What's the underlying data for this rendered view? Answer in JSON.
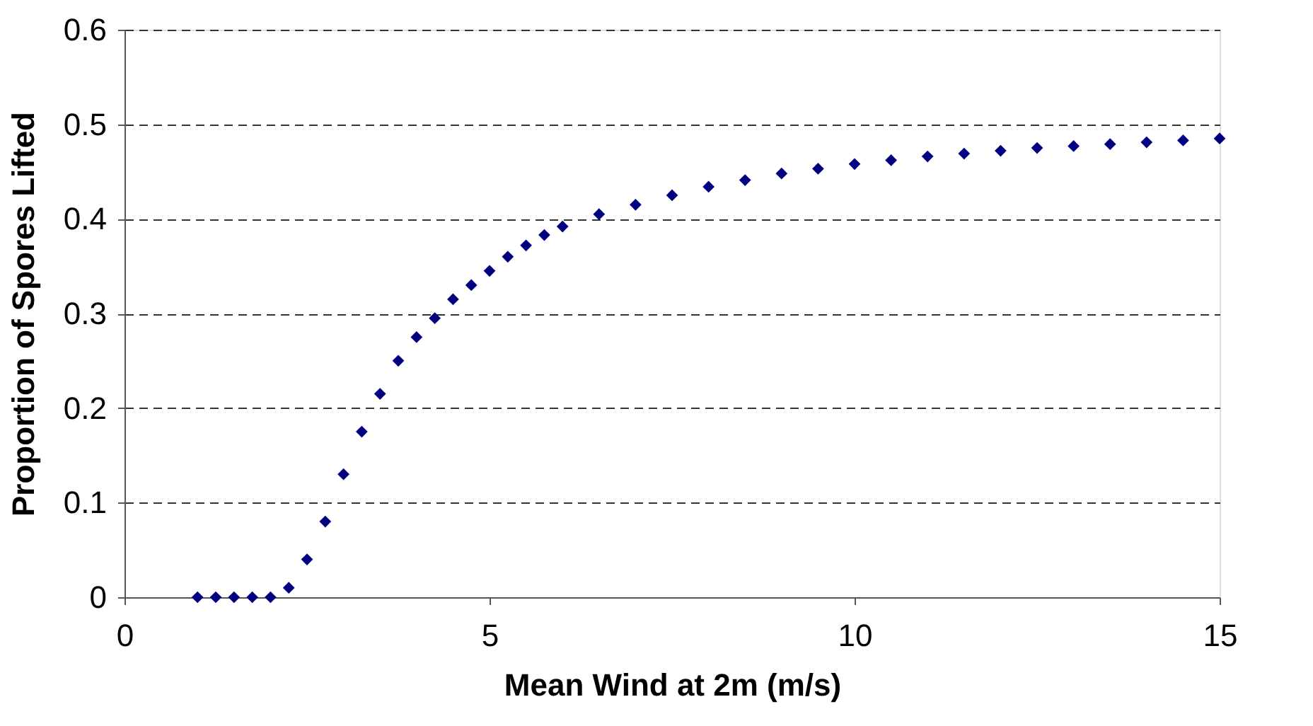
{
  "chart_data": {
    "type": "scatter",
    "xlabel": "Mean Wind at 2m (m/s)",
    "ylabel": "Proportion of Spores Lifted",
    "x": [
      1,
      1.25,
      1.5,
      1.75,
      2,
      2.25,
      2.5,
      2.75,
      3,
      3.25,
      3.5,
      3.75,
      4,
      4.25,
      4.5,
      4.75,
      5,
      5.25,
      5.5,
      5.75,
      6,
      6.5,
      7,
      7.5,
      8,
      8.5,
      9,
      9.5,
      10,
      10.5,
      11,
      11.5,
      12,
      12.5,
      13,
      13.5,
      14,
      14.5,
      15
    ],
    "series": [
      {
        "color": "#000080",
        "values": [
          0,
          0,
          0,
          0,
          0,
          0.01,
          0.04,
          0.08,
          0.13,
          0.175,
          0.215,
          0.25,
          0.275,
          0.295,
          0.315,
          0.33,
          0.345,
          0.36,
          0.372,
          0.383,
          0.392,
          0.405,
          0.415,
          0.425,
          0.434,
          0.441,
          0.448,
          0.453,
          0.458,
          0.462,
          0.466,
          0.469,
          0.472,
          0.475,
          0.477,
          0.479,
          0.481,
          0.483,
          0.485
        ]
      }
    ],
    "xlim": [
      0,
      15
    ],
    "xticks": [
      0,
      5,
      10,
      15
    ],
    "ylim": [
      0,
      0.6
    ],
    "yticks": [
      0,
      0.1,
      0.2,
      0.3,
      0.4,
      0.5,
      0.6
    ],
    "grid": "y",
    "marker": "diamond",
    "legend": false
  }
}
